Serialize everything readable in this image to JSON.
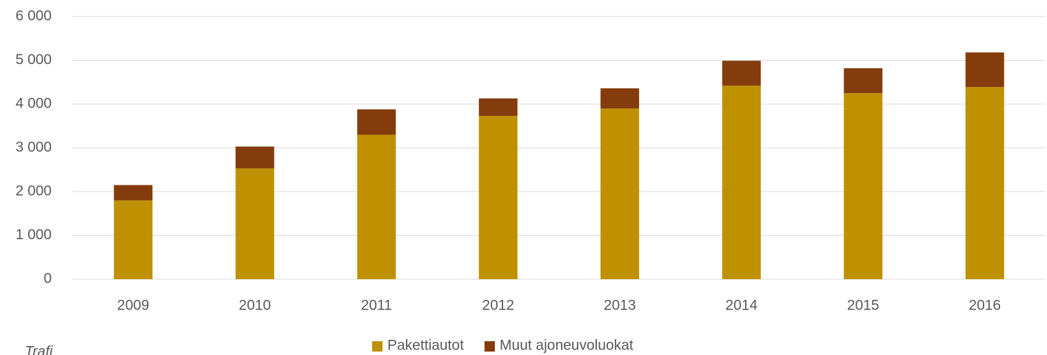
{
  "chart_data": {
    "type": "stacked_bar",
    "categories": [
      "2009",
      "2010",
      "2011",
      "2012",
      "2013",
      "2014",
      "2015",
      "2016"
    ],
    "series": [
      {
        "name": "Pakettiautot",
        "color": "#bf9000",
        "values": [
          1800,
          2530,
          3300,
          3730,
          3900,
          4420,
          4250,
          4390
        ]
      },
      {
        "name": "Muut ajoneuvoluokat",
        "color": "#843c0c",
        "values": [
          350,
          500,
          580,
          400,
          460,
          570,
          570,
          790
        ]
      }
    ],
    "ylim": [
      0,
      6000
    ],
    "yticks": [
      0,
      {
        "value": 1000,
        "label": "1 000"
      },
      {
        "value": 2000,
        "label": "2 000"
      },
      {
        "value": 3000,
        "label": "3 000"
      },
      {
        "value": 4000,
        "label": "4 000"
      },
      {
        "value": 5000,
        "label": "5 000"
      },
      {
        "value": 6000,
        "label": "6 000"
      }
    ],
    "grid": true,
    "legend": "bottom",
    "source": "Trafi"
  }
}
